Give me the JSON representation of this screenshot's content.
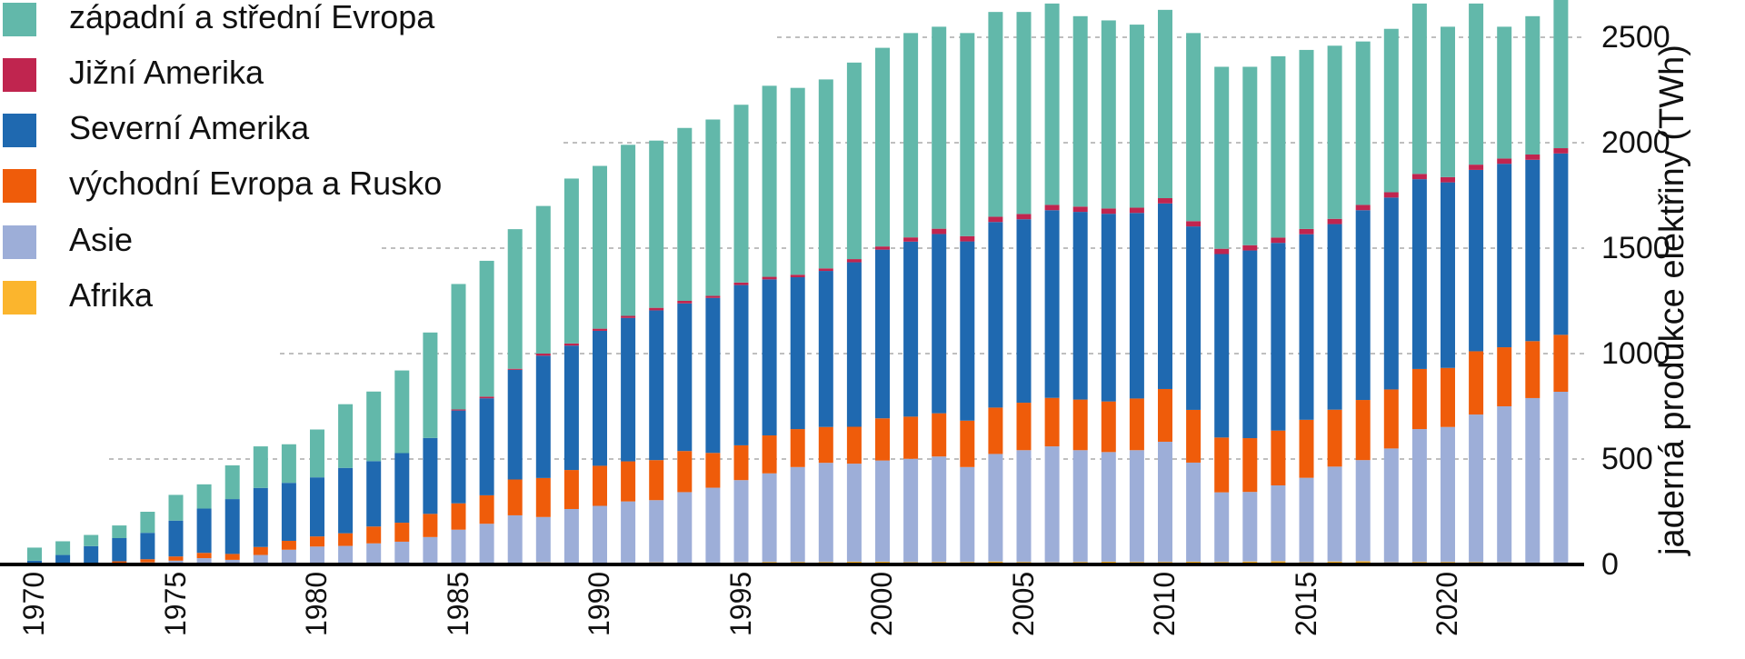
{
  "chart_data": {
    "type": "bar",
    "stacked": true,
    "title": "",
    "xlabel": "",
    "ylabel": "jaderná produkce elektřiny (TWh)",
    "ylim": [
      0,
      2700
    ],
    "yticks": [
      0,
      500,
      1000,
      1500,
      2000,
      2500
    ],
    "ytick_labels": [
      "0",
      "500",
      "1000",
      "1500",
      "2000",
      "2500"
    ],
    "xtick_labels": [
      "1970",
      "1975",
      "1980",
      "1985",
      "1990",
      "1995",
      "2000",
      "2005",
      "2010",
      "2015",
      "2020"
    ],
    "grid": "horizontal dashed",
    "legend_position": "top-left",
    "categories": [
      1970,
      1971,
      1972,
      1973,
      1974,
      1975,
      1976,
      1977,
      1978,
      1979,
      1980,
      1981,
      1982,
      1983,
      1984,
      1985,
      1986,
      1987,
      1988,
      1989,
      1990,
      1991,
      1992,
      1993,
      1994,
      1995,
      1996,
      1997,
      1998,
      1999,
      2000,
      2001,
      2002,
      2003,
      2004,
      2005,
      2006,
      2007,
      2008,
      2009,
      2010,
      2011,
      2012,
      2013,
      2014,
      2015,
      2016,
      2017,
      2018,
      2019,
      2020,
      2021,
      2022,
      2023,
      2024
    ],
    "series": [
      {
        "name": "Afrika",
        "color": "#fbb52d",
        "values": [
          0,
          0,
          0,
          0,
          0,
          0,
          0,
          0,
          0,
          0,
          0,
          0,
          0,
          0,
          0,
          5,
          8,
          8,
          10,
          8,
          8,
          9,
          10,
          8,
          9,
          10,
          12,
          12,
          12,
          13,
          13,
          11,
          12,
          12,
          14,
          12,
          10,
          12,
          13,
          12,
          12,
          13,
          12,
          14,
          15,
          11,
          14,
          15,
          10,
          12,
          12,
          11,
          10,
          9,
          9
        ]
      },
      {
        "name": "Asie",
        "color": "#9daed8",
        "values": [
          0,
          0,
          2,
          5,
          10,
          18,
          30,
          22,
          45,
          70,
          85,
          88,
          100,
          108,
          130,
          160,
          185,
          225,
          215,
          255,
          270,
          290,
          295,
          335,
          355,
          390,
          420,
          450,
          470,
          465,
          480,
          490,
          500,
          450,
          510,
          530,
          550,
          530,
          520,
          530,
          570,
          470,
          330,
          330,
          360,
          400,
          450,
          480,
          540,
          630,
          640,
          700,
          740,
          780,
          810
        ]
      },
      {
        "name": "východní Evropa a Rusko",
        "color": "#ef5c0a",
        "values": [
          0,
          0,
          5,
          10,
          15,
          20,
          25,
          28,
          38,
          42,
          48,
          60,
          80,
          90,
          110,
          125,
          135,
          170,
          185,
          185,
          190,
          190,
          190,
          195,
          165,
          165,
          180,
          180,
          170,
          175,
          200,
          200,
          205,
          220,
          220,
          225,
          230,
          240,
          240,
          245,
          250,
          250,
          260,
          255,
          260,
          275,
          270,
          285,
          280,
          285,
          280,
          300,
          280,
          270,
          270
        ]
      },
      {
        "name": "Severní Amerika",
        "color": "#1f69b0",
        "values": [
          18,
          45,
          80,
          110,
          125,
          170,
          210,
          260,
          280,
          275,
          280,
          310,
          310,
          330,
          360,
          440,
          460,
          520,
          580,
          590,
          640,
          680,
          710,
          700,
          735,
          760,
          740,
          720,
          740,
          780,
          800,
          830,
          850,
          850,
          880,
          870,
          890,
          890,
          890,
          880,
          880,
          870,
          870,
          890,
          890,
          880,
          880,
          900,
          910,
          900,
          880,
          860,
          870,
          860,
          860
        ]
      },
      {
        "name": "Jižní Amerika",
        "color": "#c0254f",
        "values": [
          0,
          0,
          0,
          0,
          0,
          0,
          0,
          0,
          0,
          0,
          0,
          0,
          0,
          0,
          0,
          5,
          8,
          5,
          10,
          10,
          10,
          10,
          12,
          12,
          10,
          12,
          12,
          12,
          12,
          15,
          15,
          20,
          25,
          25,
          25,
          25,
          25,
          25,
          25,
          25,
          25,
          25,
          25,
          25,
          25,
          25,
          25,
          25,
          25,
          25,
          25,
          25,
          25,
          25,
          25
        ]
      },
      {
        "name": "západní a střední Evropa",
        "color": "#62b8aa",
        "values": [
          62,
          65,
          53,
          60,
          100,
          122,
          115,
          160,
          197,
          183,
          227,
          302,
          330,
          392,
          500,
          595,
          644,
          662,
          700,
          782,
          772,
          811,
          793,
          820,
          836,
          843,
          906,
          886,
          896,
          932,
          942,
          969,
          958,
          963,
          971,
          958,
          955,
          903,
          892,
          868,
          893,
          892,
          863,
          846,
          860,
          849,
          821,
          775,
          775,
          808,
          713,
          764,
          625,
          656,
          706
        ]
      }
    ],
    "totals_approx": [
      80,
      110,
      142,
      185,
      250,
      330,
      380,
      470,
      560,
      570,
      640,
      760,
      830,
      920,
      1110,
      1330,
      1440,
      1590,
      1710,
      1830,
      1900,
      1990,
      2010,
      2070,
      2110,
      2190,
      2270,
      2260,
      2300,
      2380,
      2450,
      2520,
      2550,
      2520,
      2620,
      2630,
      2660,
      2600,
      2590,
      2560,
      2630,
      2520,
      2360,
      2360,
      2410,
      2440,
      2480,
      2500,
      2560,
      2660,
      2550,
      2660,
      2550,
      2600,
      2680
    ]
  }
}
